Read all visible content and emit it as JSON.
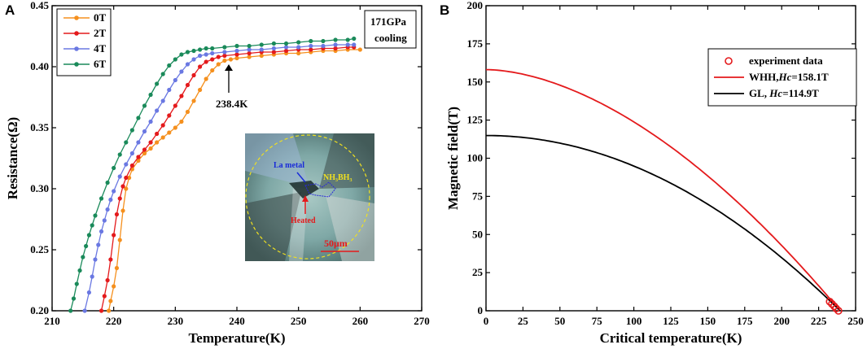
{
  "chart_data": [
    {
      "panel": "A",
      "type": "line",
      "xlabel": "Temperature(K)",
      "ylabel": "Resistance(Ω)",
      "xlim": [
        210,
        270
      ],
      "ylim": [
        0.2,
        0.45
      ],
      "xticks": [
        210,
        220,
        230,
        240,
        250,
        260,
        270
      ],
      "yticks": [
        0.2,
        0.25,
        0.3,
        0.35,
        0.4,
        0.45
      ],
      "xtick_labels": [
        "210",
        "220",
        "230",
        "240",
        "250",
        "260",
        "270"
      ],
      "ytick_labels": [
        "0.20",
        "0.25",
        "0.30",
        "0.35",
        "0.40",
        "0.45"
      ],
      "legend": [
        "0T",
        "2T",
        "4T",
        "6T"
      ],
      "legend_position": "top-left",
      "info_box": [
        "171GPa",
        "cooling"
      ],
      "annotation": {
        "label": "238.4K",
        "x": 238.4
      },
      "series": [
        {
          "name": "0T",
          "color": "#f5901e",
          "x": [
            219.2,
            219.5,
            220.0,
            220.5,
            221.0,
            221.5,
            222.0,
            222.5,
            223.0,
            224.0,
            225.0,
            226.0,
            227.0,
            228.0,
            229.0,
            230.0,
            231.0,
            232.0,
            233.0,
            234.0,
            235.0,
            236.0,
            237.0,
            238.0,
            239.0,
            240.0,
            242.0,
            244.0,
            246.0,
            248.0,
            250.0,
            252.0,
            254.0,
            256.0,
            258.0,
            260.0
          ],
          "y": [
            0.2,
            0.208,
            0.22,
            0.235,
            0.258,
            0.282,
            0.3,
            0.309,
            0.316,
            0.323,
            0.329,
            0.333,
            0.338,
            0.342,
            0.346,
            0.35,
            0.355,
            0.363,
            0.372,
            0.381,
            0.39,
            0.397,
            0.402,
            0.405,
            0.406,
            0.407,
            0.408,
            0.409,
            0.41,
            0.411,
            0.411,
            0.412,
            0.413,
            0.413,
            0.414,
            0.414
          ]
        },
        {
          "name": "2T",
          "color": "#e41a1c",
          "x": [
            218.0,
            218.5,
            219.0,
            219.5,
            220.0,
            220.5,
            221.0,
            221.5,
            222.0,
            223.0,
            224.0,
            225.0,
            226.0,
            227.0,
            228.0,
            229.0,
            230.0,
            231.0,
            232.0,
            233.0,
            234.0,
            235.0,
            236.0,
            237.0,
            238.0,
            240.0,
            242.0,
            244.0,
            246.0,
            248.0,
            250.0,
            252.0,
            254.0,
            256.0,
            258.0,
            259.0
          ],
          "y": [
            0.2,
            0.212,
            0.225,
            0.242,
            0.262,
            0.279,
            0.292,
            0.302,
            0.309,
            0.319,
            0.326,
            0.332,
            0.338,
            0.345,
            0.352,
            0.36,
            0.368,
            0.376,
            0.385,
            0.393,
            0.4,
            0.404,
            0.406,
            0.408,
            0.409,
            0.41,
            0.411,
            0.412,
            0.412,
            0.413,
            0.414,
            0.414,
            0.415,
            0.415,
            0.416,
            0.416
          ]
        },
        {
          "name": "4T",
          "color": "#6a78e2",
          "x": [
            215.3,
            216.0,
            216.5,
            217.0,
            217.5,
            218.0,
            218.5,
            219.0,
            219.5,
            220.0,
            221.0,
            222.0,
            223.0,
            224.0,
            225.0,
            226.0,
            227.0,
            228.0,
            229.0,
            230.0,
            231.0,
            232.0,
            233.0,
            234.0,
            235.0,
            236.0,
            238.0,
            240.0,
            242.0,
            244.0,
            246.0,
            248.0,
            250.0,
            252.0,
            254.0,
            256.0,
            258.0,
            259.0
          ],
          "y": [
            0.2,
            0.215,
            0.228,
            0.242,
            0.254,
            0.265,
            0.274,
            0.283,
            0.291,
            0.298,
            0.31,
            0.32,
            0.329,
            0.338,
            0.347,
            0.355,
            0.364,
            0.372,
            0.381,
            0.389,
            0.396,
            0.402,
            0.406,
            0.409,
            0.41,
            0.411,
            0.412,
            0.413,
            0.414,
            0.414,
            0.415,
            0.416,
            0.416,
            0.417,
            0.417,
            0.418,
            0.418,
            0.418
          ]
        },
        {
          "name": "6T",
          "color": "#1a8a5a",
          "x": [
            213.0,
            213.5,
            214.0,
            214.5,
            215.0,
            215.5,
            216.0,
            216.5,
            217.0,
            218.0,
            219.0,
            220.0,
            221.0,
            222.0,
            223.0,
            224.0,
            225.0,
            226.0,
            227.0,
            228.0,
            229.0,
            230.0,
            231.0,
            232.0,
            233.0,
            234.0,
            235.0,
            236.0,
            238.0,
            240.0,
            242.0,
            244.0,
            246.0,
            248.0,
            250.0,
            252.0,
            254.0,
            256.0,
            258.0,
            259.0
          ],
          "y": [
            0.2,
            0.21,
            0.222,
            0.233,
            0.244,
            0.253,
            0.262,
            0.27,
            0.278,
            0.292,
            0.305,
            0.317,
            0.328,
            0.338,
            0.348,
            0.358,
            0.368,
            0.377,
            0.386,
            0.394,
            0.401,
            0.406,
            0.41,
            0.412,
            0.413,
            0.414,
            0.415,
            0.415,
            0.416,
            0.417,
            0.417,
            0.418,
            0.419,
            0.419,
            0.42,
            0.421,
            0.421,
            0.422,
            0.422,
            0.423
          ]
        }
      ],
      "inset": {
        "description_labels": [
          "La metal",
          "NH₃BH₃",
          "Heated",
          "50μm"
        ],
        "colors": {
          "la_metal": "#1a2bd8",
          "nh3bh3": "#f0e020",
          "heated": "#e41a1c",
          "scale": "#e41a1c"
        }
      }
    },
    {
      "panel": "B",
      "type": "line",
      "xlabel": "Critical temperature(K)",
      "ylabel": "Magnetic field(T)",
      "xlim": [
        0,
        250
      ],
      "ylim": [
        0,
        200
      ],
      "xticks": [
        0,
        25,
        50,
        75,
        100,
        125,
        150,
        175,
        200,
        225,
        250
      ],
      "yticks": [
        0,
        25,
        50,
        75,
        100,
        125,
        150,
        175,
        200
      ],
      "xtick_labels": [
        "0",
        "25",
        "50",
        "75",
        "100",
        "125",
        "150",
        "175",
        "200",
        "225",
        "250"
      ],
      "ytick_labels": [
        "0",
        "25",
        "50",
        "75",
        "100",
        "125",
        "150",
        "175",
        "200"
      ],
      "legend_position": "top-right",
      "legend": [
        {
          "kind": "marker",
          "label": "experiment data",
          "color": "#e41a1c"
        },
        {
          "kind": "line",
          "prefix": "WHH,",
          "italic": "Hc",
          "suffix": "=158.1T",
          "color": "#e41a1c"
        },
        {
          "kind": "line",
          "prefix": "GL,    ",
          "italic": "Hc",
          "suffix": "=114.9T",
          "color": "#000000"
        }
      ],
      "series": [
        {
          "name": "WHH",
          "color": "#e41a1c",
          "Hc": 158.1,
          "Tc": 239.5,
          "model": "whh"
        },
        {
          "name": "GL",
          "color": "#000000",
          "Hc": 114.9,
          "Tc": 239.5,
          "model": "gl"
        },
        {
          "name": "experiment data",
          "color": "#e41a1c",
          "kind": "scatter",
          "x": [
            232.5,
            234.0,
            235.5,
            236.8,
            238.4
          ],
          "y": [
            6.0,
            4.5,
            3.0,
            1.5,
            0.0
          ]
        }
      ]
    }
  ],
  "panels": {
    "a": "A",
    "b": "B"
  }
}
